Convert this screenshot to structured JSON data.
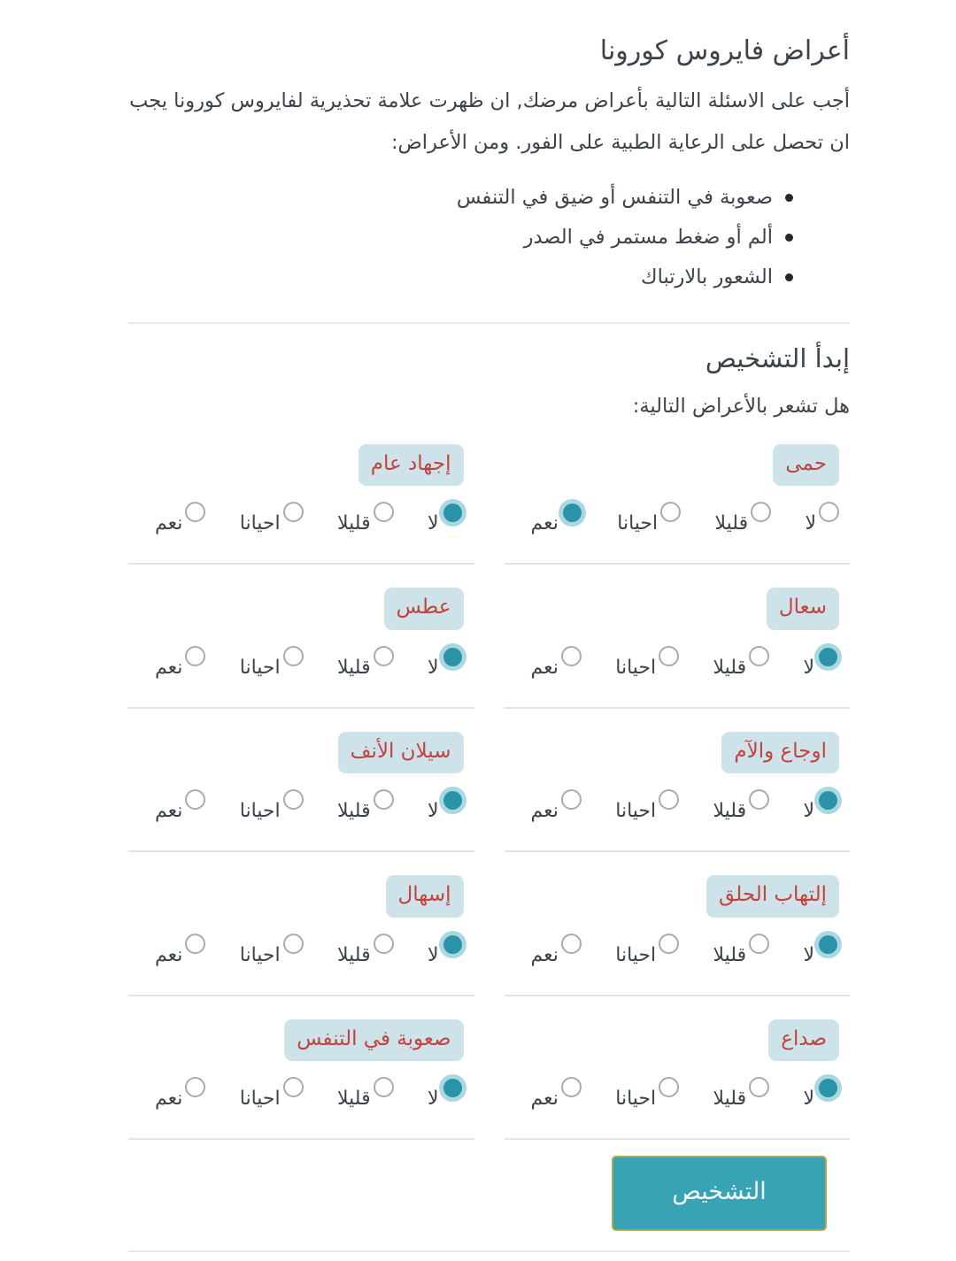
{
  "page": {
    "title": "أعراض فايروس كورونا",
    "intro": "أجب على الاسئلة التالية بأعراض مرضك, ان ظهرت علامة تحذيرية لفايروس كورونا يجب ان تحصل على الرعاية الطبية على الفور. ومن الأعراض:",
    "warning_signs": [
      "صعوبة في التنفس أو ضيق في التنفس",
      "ألم أو ضغط مستمر في الصدر",
      "الشعور بالارتباك"
    ]
  },
  "diagnosis": {
    "heading": "إبدأ التشخيص",
    "question": "هل تشعر بالأعراض التالية:",
    "options": [
      "لا",
      "قليلا",
      "احيانا",
      "نعم"
    ],
    "symptoms": [
      {
        "label": "حمى",
        "selected": "نعم"
      },
      {
        "label": "إجهاد عام",
        "selected": "لا"
      },
      {
        "label": "سعال",
        "selected": "لا"
      },
      {
        "label": "عطس",
        "selected": "لا"
      },
      {
        "label": "اوجاع والآم",
        "selected": "لا"
      },
      {
        "label": "سيلان الأنف",
        "selected": "لا"
      },
      {
        "label": "إلتهاب الحلق",
        "selected": "لا"
      },
      {
        "label": "إسهال",
        "selected": "لا"
      },
      {
        "label": "صداع",
        "selected": "لا"
      },
      {
        "label": "صعوبة في التنفس",
        "selected": "لا"
      }
    ],
    "submit_label": "التشخيص"
  },
  "colors": {
    "accent_teal": "#2a93a8",
    "radio_halo": "#a9d8e0",
    "button_bg": "#38a3b5",
    "button_border": "#b8a24b",
    "pill_bg": "#cde2e9",
    "pill_text": "#c4423d",
    "text": "#3c434a"
  }
}
